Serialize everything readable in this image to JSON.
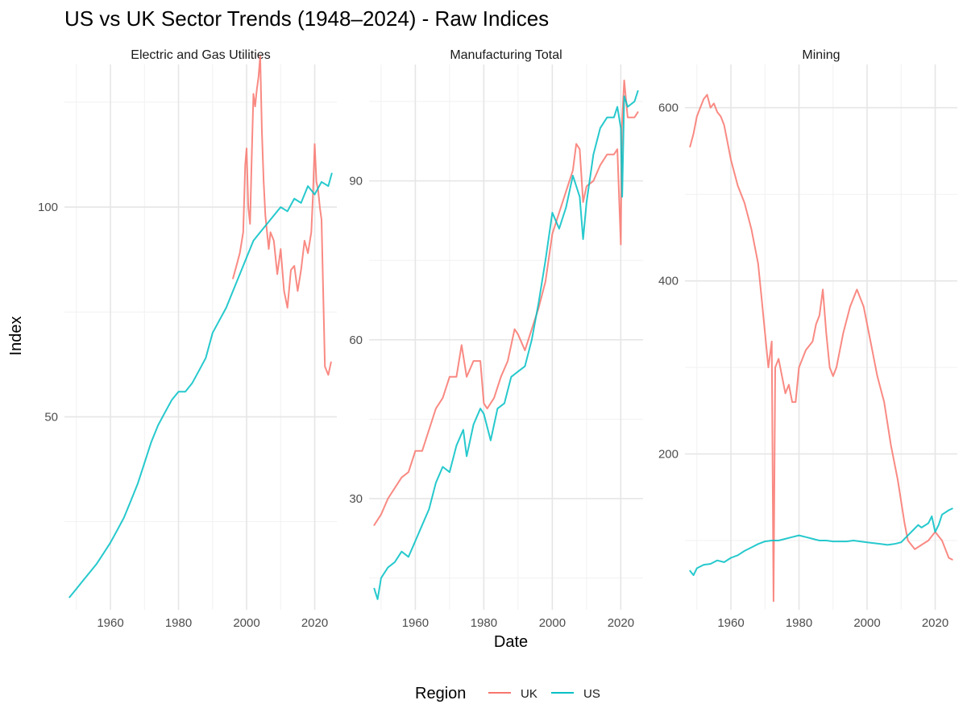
{
  "title": "US vs UK Sector Trends (1948–2024) - Raw Indices",
  "xlabel": "Date",
  "ylabel": "Index",
  "legend": {
    "title": "Region",
    "entries": [
      {
        "label": "UK",
        "color": "#f8766d"
      },
      {
        "label": "US",
        "color": "#00bfc4"
      }
    ]
  },
  "chart_data": [
    {
      "type": "line",
      "title": "Electric and Gas Utilities",
      "xlim": [
        1946.5,
        2026.5
      ],
      "ylim": [
        4,
        134
      ],
      "x_ticks": [
        1960,
        1980,
        2000,
        2020
      ],
      "y_ticks": [
        50,
        100
      ],
      "series": [
        {
          "name": "UK",
          "color": "#f8766d",
          "x": [
            1996,
            1997,
            1998,
            1999,
            1999.6,
            2000,
            2000.5,
            2001,
            2001.5,
            2002,
            2002.5,
            2003,
            2003.5,
            2004,
            2004.5,
            2005,
            2005.5,
            2006,
            2006.5,
            2007,
            2008,
            2009,
            2010,
            2011,
            2012,
            2013,
            2014,
            2015,
            2016,
            2017,
            2018,
            2019,
            2019.5,
            2020,
            2020.5,
            2021,
            2021.5,
            2022,
            2023,
            2024,
            2024.8
          ],
          "y": [
            83,
            86,
            89,
            94,
            110,
            114,
            100,
            96,
            112,
            127,
            124,
            128,
            131,
            136,
            118,
            106,
            98,
            94,
            90,
            94,
            92,
            84,
            90,
            80,
            76,
            85,
            86,
            80,
            85,
            92,
            89,
            94,
            103,
            115,
            106,
            104,
            100,
            97,
            62,
            60,
            63
          ]
        },
        {
          "name": "US",
          "color": "#00bfc4",
          "x": [
            1948,
            1950,
            1952,
            1954,
            1956,
            1958,
            1960,
            1962,
            1964,
            1966,
            1968,
            1970,
            1972,
            1974,
            1976,
            1978,
            1980,
            1982,
            1984,
            1986,
            1988,
            1990,
            1992,
            1994,
            1996,
            1998,
            2000,
            2002,
            2004,
            2006,
            2008,
            2010,
            2012,
            2014,
            2016,
            2018,
            2020,
            2022,
            2024,
            2025
          ],
          "y": [
            7,
            9,
            11,
            13,
            15,
            17.5,
            20,
            23,
            26,
            30,
            34,
            39,
            44,
            48,
            51,
            54,
            56,
            56,
            58,
            61,
            64,
            70,
            73,
            76,
            80,
            84,
            88,
            92,
            94,
            96,
            98,
            100,
            99,
            102,
            101,
            105,
            103,
            106,
            105,
            108
          ]
        }
      ]
    },
    {
      "type": "line",
      "title": "Manufacturing Total",
      "xlim": [
        1946.5,
        2026.5
      ],
      "ylim": [
        9,
        112
      ],
      "x_ticks": [
        1960,
        1980,
        2000,
        2020
      ],
      "y_ticks": [
        30,
        60,
        90
      ],
      "series": [
        {
          "name": "UK",
          "color": "#f8766d",
          "x": [
            1948,
            1950,
            1952,
            1954,
            1956,
            1958,
            1960,
            1962,
            1964,
            1966,
            1968,
            1970,
            1972,
            1973.5,
            1975,
            1977,
            1979,
            1980,
            1981,
            1983,
            1985,
            1987,
            1989,
            1990,
            1992,
            1994,
            1996,
            1998,
            2000,
            2002,
            2004,
            2006,
            2007,
            2008,
            2009,
            2010,
            2012,
            2014,
            2016,
            2018,
            2019,
            2020,
            2020.3,
            2021,
            2022,
            2024,
            2025
          ],
          "y": [
            25,
            27,
            30,
            32,
            34,
            35,
            39,
            39,
            43,
            47,
            49,
            53,
            53,
            59,
            53,
            56,
            56,
            48,
            47,
            49,
            53,
            56,
            62,
            61,
            58,
            62,
            66,
            71,
            80,
            84,
            88,
            92,
            97,
            96,
            86,
            89,
            90,
            93,
            95,
            95,
            96,
            78,
            100,
            109,
            102,
            102,
            103
          ]
        },
        {
          "name": "US",
          "color": "#00bfc4",
          "x": [
            1948,
            1949,
            1950,
            1952,
            1954,
            1956,
            1958,
            1960,
            1962,
            1964,
            1966,
            1968,
            1970,
            1972,
            1974,
            1975,
            1977,
            1979,
            1980,
            1982,
            1984,
            1986,
            1988,
            1990,
            1992,
            1994,
            1996,
            1998,
            2000,
            2002,
            2004,
            2006,
            2008,
            2009,
            2010,
            2012,
            2014,
            2016,
            2018,
            2019,
            2020,
            2020.4,
            2021,
            2022,
            2024,
            2025
          ],
          "y": [
            13,
            11,
            15,
            17,
            18,
            20,
            19,
            22,
            25,
            28,
            33,
            36,
            35,
            40,
            43,
            38,
            44,
            47,
            46,
            41,
            47,
            48,
            53,
            54,
            55,
            60,
            67,
            75,
            84,
            81,
            85,
            91,
            87,
            79,
            86,
            95,
            100,
            102,
            102,
            104,
            100,
            87,
            106,
            104,
            105,
            107
          ]
        }
      ]
    },
    {
      "type": "line",
      "title": "Mining",
      "xlim": [
        1946.5,
        2026.5
      ],
      "ylim": [
        20,
        650
      ],
      "x_ticks": [
        1960,
        1980,
        2000,
        2020
      ],
      "y_ticks": [
        200,
        400,
        600
      ],
      "series": [
        {
          "name": "UK",
          "color": "#f8766d",
          "x": [
            1948,
            1949,
            1950,
            1951,
            1952,
            1953,
            1954,
            1955,
            1956,
            1957,
            1958,
            1960,
            1962,
            1964,
            1966,
            1968,
            1969,
            1970,
            1971,
            1972,
            1972.5,
            1973,
            1974,
            1975,
            1976,
            1977,
            1978,
            1979,
            1980,
            1982,
            1984,
            1985,
            1986,
            1987,
            1988,
            1989,
            1990,
            1991,
            1993,
            1995,
            1997,
            1999,
            2001,
            2003,
            2005,
            2007,
            2009,
            2011,
            2012,
            2014,
            2016,
            2018,
            2020,
            2022,
            2024,
            2025
          ],
          "y": [
            555,
            570,
            590,
            600,
            610,
            615,
            600,
            605,
            595,
            590,
            580,
            540,
            510,
            490,
            460,
            420,
            380,
            340,
            300,
            330,
            30,
            300,
            310,
            290,
            270,
            280,
            260,
            260,
            300,
            320,
            330,
            350,
            360,
            390,
            340,
            300,
            290,
            300,
            340,
            370,
            390,
            370,
            330,
            290,
            260,
            210,
            170,
            120,
            100,
            90,
            95,
            100,
            110,
            100,
            80,
            78
          ]
        },
        {
          "name": "US",
          "color": "#00bfc4",
          "x": [
            1948,
            1949,
            1950,
            1952,
            1954,
            1956,
            1958,
            1960,
            1962,
            1964,
            1966,
            1968,
            1970,
            1972,
            1974,
            1976,
            1978,
            1980,
            1982,
            1984,
            1986,
            1988,
            1990,
            1992,
            1994,
            1996,
            1998,
            2000,
            2002,
            2004,
            2006,
            2008,
            2010,
            2012,
            2014,
            2015,
            2016,
            2018,
            2019,
            2020,
            2021,
            2022,
            2024,
            2025
          ],
          "y": [
            65,
            60,
            68,
            72,
            73,
            77,
            75,
            80,
            83,
            88,
            92,
            96,
            99,
            100,
            100,
            102,
            104,
            106,
            104,
            102,
            100,
            100,
            99,
            99,
            99,
            100,
            99,
            98,
            97,
            96,
            95,
            96,
            98,
            106,
            114,
            118,
            115,
            120,
            128,
            110,
            118,
            130,
            135,
            137
          ]
        }
      ]
    }
  ]
}
